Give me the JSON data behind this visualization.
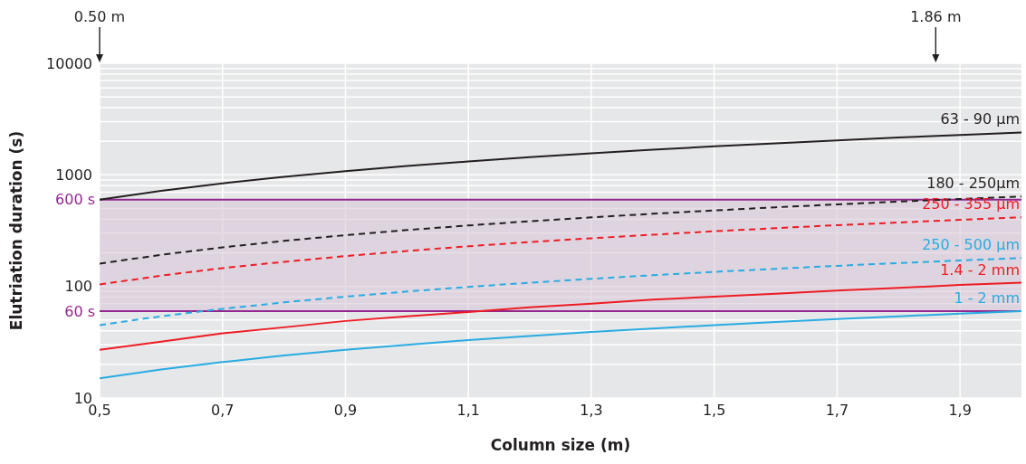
{
  "chart_data": {
    "type": "line",
    "xlabel": "Column size (m)",
    "ylabel": "Elutriation duration (s)",
    "x": [
      0.5,
      0.6,
      0.7,
      0.8,
      0.9,
      1.0,
      1.1,
      1.2,
      1.3,
      1.4,
      1.5,
      1.6,
      1.7,
      1.8,
      1.9,
      2.0
    ],
    "series": [
      {
        "name": "63 - 90 µm",
        "color": "#231f20",
        "line_style": "solid",
        "values": [
          600,
          720,
          840,
          960,
          1080,
          1200,
          1320,
          1440,
          1560,
          1680,
          1800,
          1920,
          2040,
          2160,
          2280,
          2400
        ]
      },
      {
        "name": "180 - 250µm",
        "color": "#231f20",
        "line_style": "dashed",
        "values": [
          160,
          192,
          224,
          256,
          288,
          320,
          352,
          384,
          416,
          448,
          480,
          512,
          544,
          576,
          608,
          640
        ]
      },
      {
        "name": "250 - 355 µm",
        "color": "#ed1c24",
        "line_style": "dashed",
        "values": [
          104,
          125,
          146,
          166,
          187,
          208,
          229,
          250,
          270,
          291,
          312,
          333,
          354,
          374,
          395,
          416
        ]
      },
      {
        "name": "250 - 500 µm",
        "color": "#29abe2",
        "line_style": "dashed",
        "values": [
          45,
          54,
          63,
          72,
          81,
          90,
          99,
          108,
          117,
          126,
          135,
          144,
          153,
          162,
          171,
          180
        ]
      },
      {
        "name": "1.4 - 2 mm",
        "color": "#ed1c24",
        "line_style": "solid",
        "values": [
          27,
          32,
          38,
          43,
          49,
          54,
          59,
          65,
          70,
          76,
          81,
          86,
          92,
          97,
          103,
          108
        ]
      },
      {
        "name": "1 - 2 mm",
        "color": "#29abe2",
        "line_style": "solid",
        "values": [
          15,
          18,
          21,
          24,
          27,
          30,
          33,
          36,
          39,
          42,
          45,
          48,
          51,
          54,
          57,
          60
        ]
      }
    ],
    "xlim": [
      0.5,
      2.0
    ],
    "xticks": [
      {
        "value": 0.5,
        "label": "0,5"
      },
      {
        "value": 0.7,
        "label": "0,7"
      },
      {
        "value": 0.9,
        "label": "0,9"
      },
      {
        "value": 1.1,
        "label": "1,1"
      },
      {
        "value": 1.3,
        "label": "1,3"
      },
      {
        "value": 1.5,
        "label": "1,5"
      },
      {
        "value": 1.7,
        "label": "1,7"
      },
      {
        "value": 1.9,
        "label": "1,9"
      }
    ],
    "ylim": [
      10,
      10000
    ],
    "yticks": [
      10,
      100,
      1000,
      10000
    ],
    "log": "y",
    "grid": true,
    "legend": false,
    "marker": "none",
    "ref_lines": [
      {
        "axis": "y",
        "value": 600,
        "label": "600 s",
        "color": "#92278f"
      },
      {
        "axis": "y",
        "value": 60,
        "label": "60 s",
        "color": "#92278f"
      }
    ],
    "annotations": [
      "0.50 m",
      "1.86 m"
    ],
    "bands": [
      {
        "axis": "y",
        "from": 60,
        "to": 600,
        "label": null,
        "color": "#d8c8d8"
      }
    ]
  }
}
